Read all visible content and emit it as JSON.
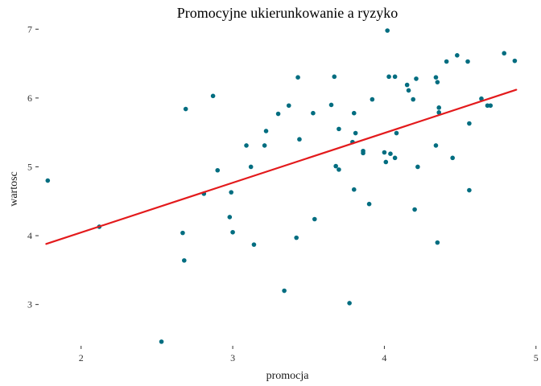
{
  "chart_data": {
    "type": "scatter",
    "title": "Promocyjne ukierunkowanie a ryzyko",
    "xlabel": "promocja",
    "ylabel": "wartosc",
    "xlim": [
      1.72,
      4.98
    ],
    "ylim": [
      2.4,
      7.05
    ],
    "x_ticks": [
      2,
      3,
      4,
      5
    ],
    "y_ticks": [
      3,
      4,
      5,
      6,
      7
    ],
    "grid": false,
    "point_color": "#006d80",
    "line_color": "#e31a1c",
    "points": [
      {
        "x": 1.78,
        "y": 4.8
      },
      {
        "x": 2.12,
        "y": 4.13
      },
      {
        "x": 2.53,
        "y": 2.46
      },
      {
        "x": 2.67,
        "y": 4.04
      },
      {
        "x": 2.68,
        "y": 3.64
      },
      {
        "x": 2.69,
        "y": 5.84
      },
      {
        "x": 2.81,
        "y": 4.61
      },
      {
        "x": 2.87,
        "y": 6.03
      },
      {
        "x": 2.9,
        "y": 4.95
      },
      {
        "x": 2.98,
        "y": 4.27
      },
      {
        "x": 2.99,
        "y": 4.63
      },
      {
        "x": 3.0,
        "y": 4.05
      },
      {
        "x": 3.09,
        "y": 5.31
      },
      {
        "x": 3.12,
        "y": 5.0
      },
      {
        "x": 3.14,
        "y": 3.87
      },
      {
        "x": 3.21,
        "y": 5.31
      },
      {
        "x": 3.22,
        "y": 5.52
      },
      {
        "x": 3.3,
        "y": 5.77
      },
      {
        "x": 3.34,
        "y": 3.2
      },
      {
        "x": 3.37,
        "y": 5.89
      },
      {
        "x": 3.42,
        "y": 3.97
      },
      {
        "x": 3.43,
        "y": 6.3
      },
      {
        "x": 3.44,
        "y": 5.4
      },
      {
        "x": 3.53,
        "y": 5.78
      },
      {
        "x": 3.54,
        "y": 4.24
      },
      {
        "x": 3.65,
        "y": 5.9
      },
      {
        "x": 3.67,
        "y": 6.31
      },
      {
        "x": 3.68,
        "y": 5.01
      },
      {
        "x": 3.7,
        "y": 4.96
      },
      {
        "x": 3.7,
        "y": 5.55
      },
      {
        "x": 3.77,
        "y": 3.02
      },
      {
        "x": 3.79,
        "y": 5.36
      },
      {
        "x": 3.8,
        "y": 4.67
      },
      {
        "x": 3.8,
        "y": 5.78
      },
      {
        "x": 3.81,
        "y": 5.49
      },
      {
        "x": 3.86,
        "y": 5.2
      },
      {
        "x": 3.86,
        "y": 5.23
      },
      {
        "x": 3.9,
        "y": 4.46
      },
      {
        "x": 3.92,
        "y": 5.98
      },
      {
        "x": 4.0,
        "y": 5.21
      },
      {
        "x": 4.01,
        "y": 5.07
      },
      {
        "x": 4.02,
        "y": 6.98
      },
      {
        "x": 4.03,
        "y": 6.31
      },
      {
        "x": 4.04,
        "y": 5.19
      },
      {
        "x": 4.07,
        "y": 6.31
      },
      {
        "x": 4.07,
        "y": 5.13
      },
      {
        "x": 4.08,
        "y": 5.49
      },
      {
        "x": 4.15,
        "y": 6.19
      },
      {
        "x": 4.16,
        "y": 6.11
      },
      {
        "x": 4.19,
        "y": 5.98
      },
      {
        "x": 4.2,
        "y": 4.38
      },
      {
        "x": 4.21,
        "y": 6.28
      },
      {
        "x": 4.22,
        "y": 5.0
      },
      {
        "x": 4.34,
        "y": 6.3
      },
      {
        "x": 4.34,
        "y": 5.31
      },
      {
        "x": 4.35,
        "y": 6.23
      },
      {
        "x": 4.35,
        "y": 3.9
      },
      {
        "x": 4.36,
        "y": 5.86
      },
      {
        "x": 4.36,
        "y": 5.79
      },
      {
        "x": 4.41,
        "y": 6.53
      },
      {
        "x": 4.45,
        "y": 5.13
      },
      {
        "x": 4.48,
        "y": 6.62
      },
      {
        "x": 4.55,
        "y": 6.53
      },
      {
        "x": 4.56,
        "y": 5.63
      },
      {
        "x": 4.56,
        "y": 4.66
      },
      {
        "x": 4.64,
        "y": 5.99
      },
      {
        "x": 4.68,
        "y": 5.89
      },
      {
        "x": 4.7,
        "y": 5.89
      },
      {
        "x": 4.79,
        "y": 6.65
      },
      {
        "x": 4.86,
        "y": 6.54
      }
    ],
    "fit_line": {
      "x": [
        1.77,
        4.87
      ],
      "y": [
        3.88,
        6.12
      ]
    }
  }
}
